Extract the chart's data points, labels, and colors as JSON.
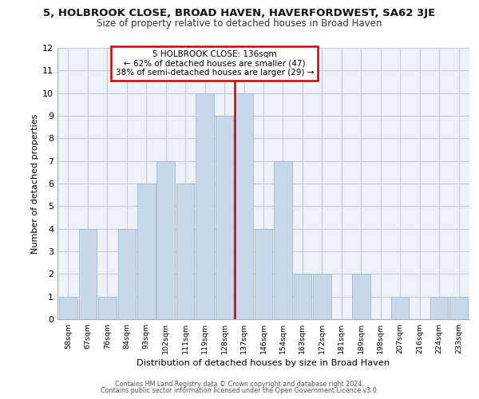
{
  "title_line1": "5, HOLBROOK CLOSE, BROAD HAVEN, HAVERFORDWEST, SA62 3JE",
  "title_line2": "Size of property relative to detached houses in Broad Haven",
  "xlabel": "Distribution of detached houses by size in Broad Haven",
  "ylabel": "Number of detached properties",
  "bins": [
    "58sqm",
    "67sqm",
    "76sqm",
    "84sqm",
    "93sqm",
    "102sqm",
    "111sqm",
    "119sqm",
    "128sqm",
    "137sqm",
    "146sqm",
    "154sqm",
    "163sqm",
    "172sqm",
    "181sqm",
    "189sqm",
    "198sqm",
    "207sqm",
    "216sqm",
    "224sqm",
    "233sqm"
  ],
  "bar_heights": [
    1,
    4,
    1,
    4,
    6,
    7,
    6,
    10,
    9,
    10,
    4,
    7,
    2,
    2,
    0,
    2,
    0,
    1,
    0,
    1,
    1
  ],
  "bar_color": "#c8d8eb",
  "bar_edgecolor": "#a0b8d0",
  "vline_color": "#cc0000",
  "vline_bin_index": 9,
  "annotation_text": "5 HOLBROOK CLOSE: 136sqm\n← 62% of detached houses are smaller (47)\n38% of semi-detached houses are larger (29) →",
  "annotation_box_facecolor": "#ffffff",
  "annotation_box_edgecolor": "#cc0000",
  "ylim": [
    0,
    12
  ],
  "yticks": [
    0,
    1,
    2,
    3,
    4,
    5,
    6,
    7,
    8,
    9,
    10,
    11,
    12
  ],
  "grid_color": "#cccccc",
  "bg_color": "#edf1f8",
  "footer1": "Contains HM Land Registry data © Crown copyright and database right 2024.",
  "footer2": "Contains public sector information licensed under the Open Government Licence v3.0."
}
